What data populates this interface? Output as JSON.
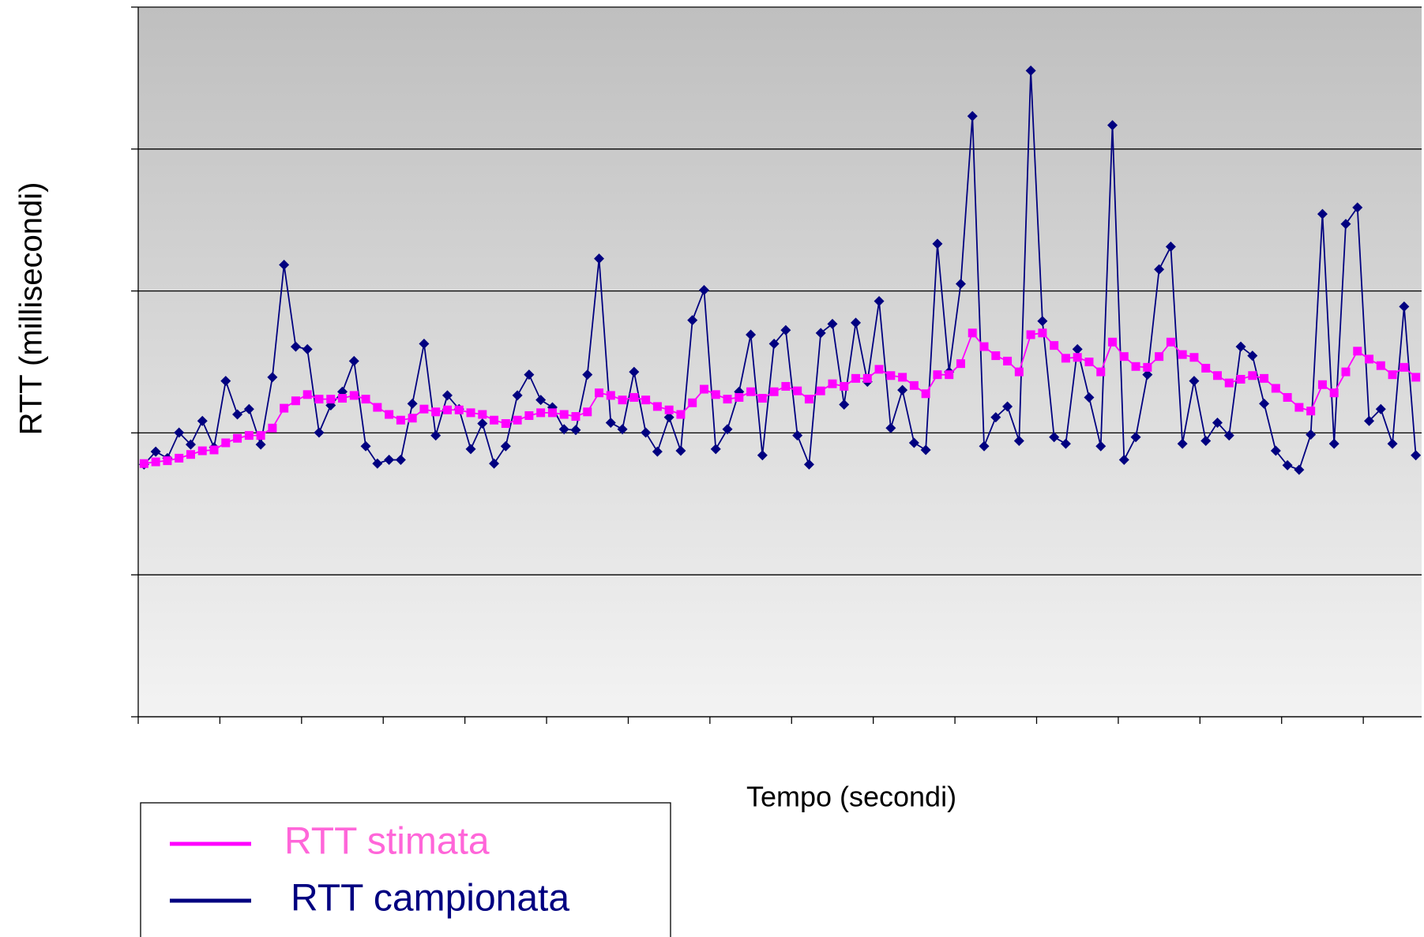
{
  "chart_data": {
    "type": "line",
    "y_label": "RTT (millisecondi)",
    "x_label": "Tempo (secondi)",
    "x": [
      1,
      2,
      3,
      4,
      5,
      6,
      7,
      8,
      9,
      10,
      11,
      12,
      13,
      14,
      15,
      16,
      17,
      18,
      19,
      20,
      21,
      22,
      23,
      24,
      25,
      26,
      27,
      28,
      29,
      30,
      31,
      32,
      33,
      34,
      35,
      36,
      37,
      38,
      39,
      40,
      41,
      42,
      43,
      44,
      45,
      46,
      47,
      48,
      49,
      50,
      51,
      52,
      53,
      54,
      55,
      56,
      57,
      58,
      59,
      60,
      61,
      62,
      63,
      64,
      65,
      66,
      67,
      68,
      69,
      70,
      71,
      72,
      73,
      74,
      75,
      76,
      77,
      78,
      79,
      80,
      81,
      82,
      83,
      84,
      85,
      86,
      87,
      88,
      89,
      90,
      91,
      92,
      93,
      94,
      95,
      96,
      97,
      98,
      99,
      100,
      101,
      102,
      103,
      104,
      105,
      106,
      107,
      108,
      109,
      110
    ],
    "xlim": [
      0.5,
      110.5
    ],
    "xticks": [
      0.5,
      7.5,
      14.5,
      21.5,
      28.5,
      35.5,
      42.5,
      49.5,
      56.5,
      63.5,
      70.5,
      77.5,
      84.5,
      91.5,
      98.5,
      105.5
    ],
    "ylim": [
      100,
      350
    ],
    "yticks": [
      100,
      150,
      200,
      250,
      300,
      350
    ],
    "grid": true,
    "legend": "bottom-left",
    "series": [
      {
        "name": "RTT stimata",
        "color": "#ff00ff",
        "marker": "square",
        "values": [
          189.2,
          189.8,
          190.2,
          191.1,
          192.4,
          193.7,
          194.0,
          196.5,
          198.1,
          199.1,
          199.1,
          201.7,
          208.7,
          211.3,
          213.5,
          211.9,
          211.9,
          212.2,
          213.2,
          211.9,
          209.0,
          206.5,
          204.5,
          205.2,
          208.4,
          207.4,
          208.1,
          208.1,
          207.1,
          206.5,
          204.5,
          203.3,
          204.5,
          206.1,
          207.1,
          207.1,
          206.5,
          205.8,
          207.4,
          214.1,
          213.2,
          211.6,
          212.5,
          211.6,
          209.3,
          208.1,
          206.5,
          210.6,
          215.4,
          213.5,
          211.9,
          212.5,
          214.5,
          212.2,
          214.5,
          216.4,
          214.8,
          211.9,
          214.8,
          217.3,
          216.4,
          219.2,
          219.2,
          222.4,
          220.2,
          219.6,
          216.7,
          213.8,
          220.5,
          220.5,
          224.4,
          235.2,
          230.4,
          227.2,
          225.3,
          221.5,
          234.6,
          235.2,
          230.8,
          226.3,
          226.6,
          225.0,
          221.5,
          232.0,
          226.9,
          223.4,
          223.1,
          226.9,
          232.0,
          227.6,
          226.6,
          222.8,
          220.2,
          217.6,
          218.9,
          220.2,
          219.2,
          215.7,
          212.5,
          209.0,
          207.7,
          217.0,
          214.1,
          221.5,
          228.8,
          226.0,
          223.7,
          220.5,
          223.1,
          219.6
        ]
      },
      {
        "name": "RTT campionata",
        "color": "#000080",
        "marker": "diamond",
        "values": [
          188.9,
          193.4,
          191.1,
          200.1,
          195.9,
          204.2,
          194.9,
          218.3,
          206.5,
          208.4,
          195.9,
          219.6,
          259.2,
          230.4,
          229.5,
          200.1,
          209.7,
          214.5,
          225.3,
          195.3,
          189.2,
          190.5,
          190.5,
          210.3,
          231.4,
          199.1,
          213.2,
          208.4,
          194.3,
          203.3,
          189.2,
          195.3,
          213.2,
          220.5,
          211.6,
          209.0,
          201.3,
          201.0,
          220.5,
          261.4,
          203.6,
          201.3,
          221.5,
          200.1,
          193.4,
          205.5,
          193.7,
          239.7,
          250.3,
          194.3,
          201.3,
          214.5,
          234.6,
          192.1,
          231.4,
          236.2,
          199.1,
          188.9,
          235.2,
          238.4,
          210.0,
          238.8,
          218.0,
          246.4,
          201.7,
          215.1,
          196.5,
          194.0,
          266.6,
          221.5,
          252.5,
          311.6,
          195.3,
          205.5,
          209.3,
          197.2,
          327.6,
          239.4,
          198.5,
          196.2,
          229.5,
          212.5,
          195.3,
          308.4,
          190.5,
          198.5,
          220.5,
          257.6,
          265.6,
          196.2,
          218.3,
          197.2,
          203.6,
          199.1,
          230.4,
          227.2,
          210.3,
          193.7,
          188.6,
          187.0,
          199.4,
          277.1,
          196.2,
          273.6,
          279.4,
          204.2,
          208.4,
          196.2,
          244.5,
          192.1
        ]
      }
    ]
  }
}
